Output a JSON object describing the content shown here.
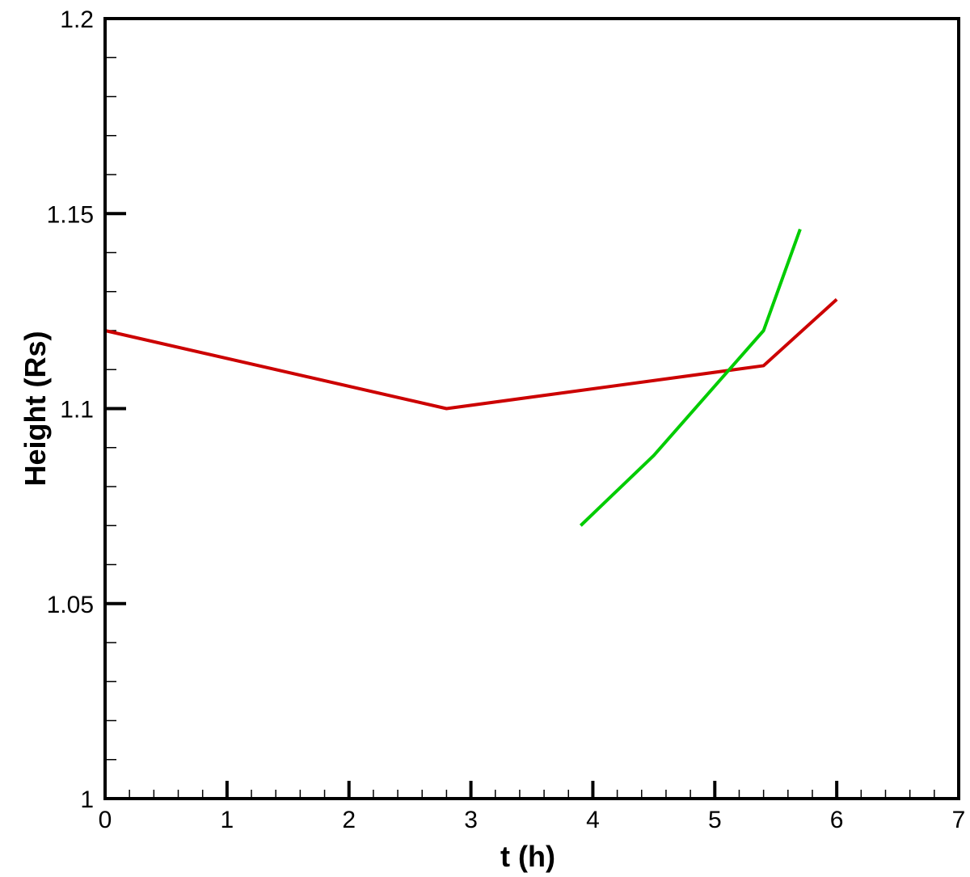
{
  "chart_data": {
    "type": "line",
    "title": "",
    "xlabel": "t (h)",
    "ylabel": "Height (Rs)",
    "xlim": [
      0,
      7
    ],
    "ylim": [
      1.0,
      1.2
    ],
    "x_ticks": [
      0,
      1,
      2,
      3,
      4,
      5,
      6,
      7
    ],
    "x_tick_labels": [
      "0",
      "1",
      "2",
      "3",
      "4",
      "5",
      "6",
      "7"
    ],
    "x_minor_step": 0.2,
    "y_ticks": [
      1.0,
      1.05,
      1.1,
      1.15,
      1.2
    ],
    "y_tick_labels": [
      "1",
      "1.05",
      "1.1",
      "1.15",
      "1.2"
    ],
    "y_minor_step": 0.01,
    "grid": false,
    "legend": "none",
    "series": [
      {
        "color": "#cc0000",
        "x": [
          0,
          2.8,
          5.4,
          6.0
        ],
        "y": [
          1.12,
          1.1,
          1.111,
          1.128
        ]
      },
      {
        "color": "#00cc00",
        "x": [
          3.9,
          4.5,
          5.4,
          5.7
        ],
        "y": [
          1.07,
          1.088,
          1.12,
          1.146
        ]
      }
    ]
  }
}
